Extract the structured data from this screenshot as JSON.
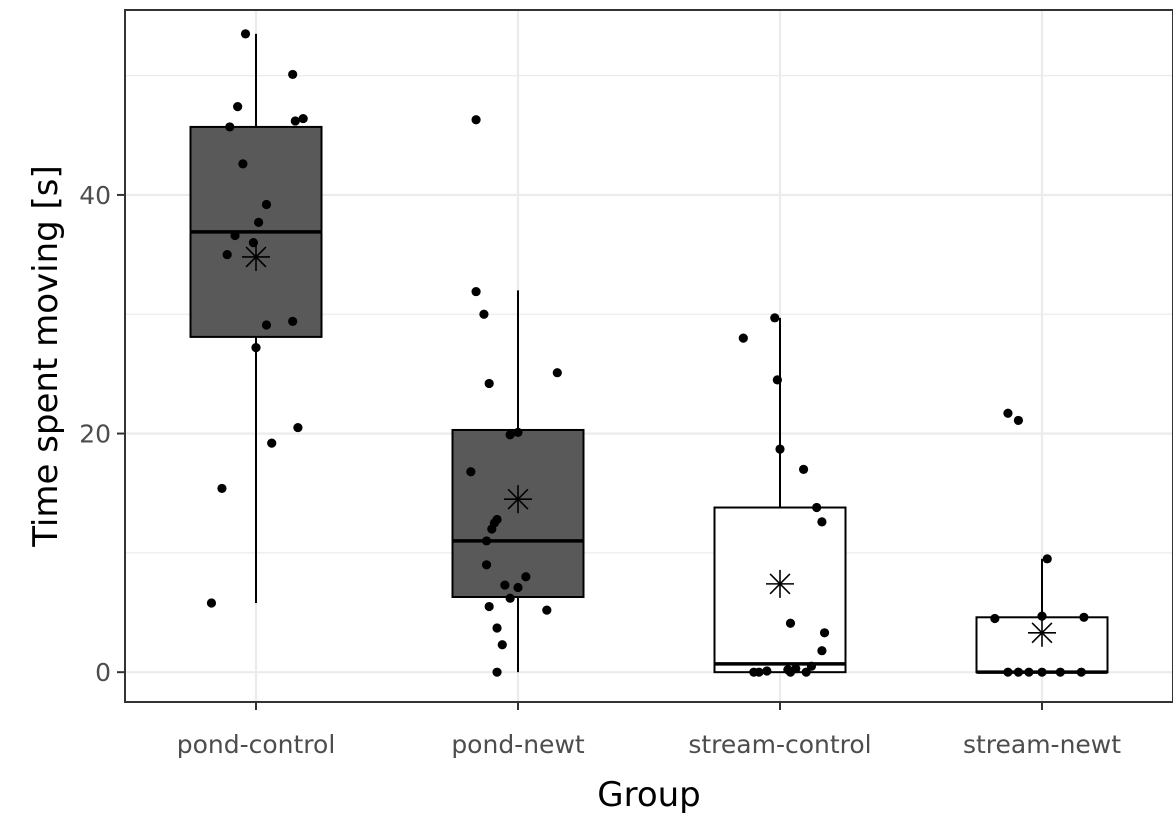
{
  "chart_data": {
    "type": "box",
    "title": "",
    "xlabel": "Group",
    "ylabel": "Time spent moving [s]",
    "ylim": [
      -2.5,
      55.5
    ],
    "yticks": [
      0,
      20,
      40
    ],
    "grid": true,
    "legend": "none",
    "mean_marker": "asterisk",
    "categories": [
      "pond-control",
      "pond-newt",
      "stream-control",
      "stream-newt"
    ],
    "colors": {
      "pond-control": "#595959",
      "pond-newt": "#595959",
      "stream-control": "#ffffff",
      "stream-newt": "#ffffff",
      "grid": "#ebebeb",
      "points": "#000000"
    },
    "boxes": [
      {
        "group": "pond-control",
        "min": 5.8,
        "q1": 28.1,
        "median": 36.9,
        "q3": 45.7,
        "max": 53.5,
        "mean": 34.8
      },
      {
        "group": "pond-newt",
        "min": 0.0,
        "q1": 6.3,
        "median": 11.0,
        "q3": 20.3,
        "max": 32.0,
        "mean": 14.5
      },
      {
        "group": "stream-control",
        "min": 0.0,
        "q1": 0.0,
        "median": 0.7,
        "q3": 13.8,
        "max": 29.7,
        "mean": 7.4
      },
      {
        "group": "stream-newt",
        "min": 0.0,
        "q1": 0.0,
        "median": 0.0,
        "q3": 4.6,
        "max": 9.5,
        "mean": 3.3
      }
    ],
    "points": [
      {
        "group": "pond-control",
        "values": [
          53.5,
          50.1,
          47.4,
          46.4,
          46.2,
          45.7,
          42.6,
          39.2,
          37.7,
          36.6,
          36.0,
          35.0,
          29.4,
          29.1,
          27.2,
          20.5,
          19.2,
          15.4,
          5.8
        ],
        "jitter": [
          -0.04,
          0.14,
          -0.07,
          0.18,
          0.15,
          -0.1,
          -0.05,
          0.04,
          0.01,
          -0.08,
          -0.01,
          -0.11,
          0.14,
          0.04,
          0.0,
          0.16,
          0.06,
          -0.13,
          -0.17
        ]
      },
      {
        "group": "pond-newt",
        "values": [
          46.3,
          31.9,
          30.0,
          25.1,
          24.2,
          20.1,
          19.9,
          16.8,
          12.8,
          12.5,
          12.0,
          11.0,
          9.0,
          8.0,
          7.3,
          7.1,
          6.2,
          5.5,
          5.2,
          3.7,
          2.3,
          0.0
        ],
        "jitter": [
          -0.16,
          -0.16,
          -0.13,
          0.15,
          -0.11,
          0.0,
          -0.03,
          -0.18,
          -0.08,
          -0.09,
          -0.1,
          -0.12,
          -0.12,
          0.03,
          -0.05,
          0.0,
          -0.03,
          -0.11,
          0.11,
          -0.08,
          -0.06,
          -0.08
        ],
        "skip_mean_overlap": true
      },
      {
        "group": "stream-control",
        "values": [
          29.7,
          28.0,
          24.5,
          18.7,
          17.0,
          13.8,
          12.6,
          4.1,
          3.3,
          1.8,
          0.5,
          0.3,
          0.2,
          0.1,
          0.0,
          0.0,
          0.0,
          0.0
        ],
        "jitter": [
          -0.02,
          -0.14,
          -0.01,
          0.0,
          0.09,
          0.14,
          0.16,
          0.04,
          0.17,
          0.16,
          0.12,
          0.06,
          0.03,
          -0.05,
          -0.1,
          -0.08,
          0.04,
          0.1
        ]
      },
      {
        "group": "stream-newt",
        "values": [
          21.7,
          21.1,
          9.5,
          4.7,
          4.6,
          4.5,
          0.0,
          0.0,
          0.0,
          0.0,
          0.0,
          0.0
        ],
        "jitter": [
          -0.13,
          -0.09,
          0.02,
          0.0,
          0.16,
          -0.18,
          -0.13,
          -0.09,
          -0.05,
          0.0,
          0.07,
          0.15
        ]
      }
    ]
  }
}
